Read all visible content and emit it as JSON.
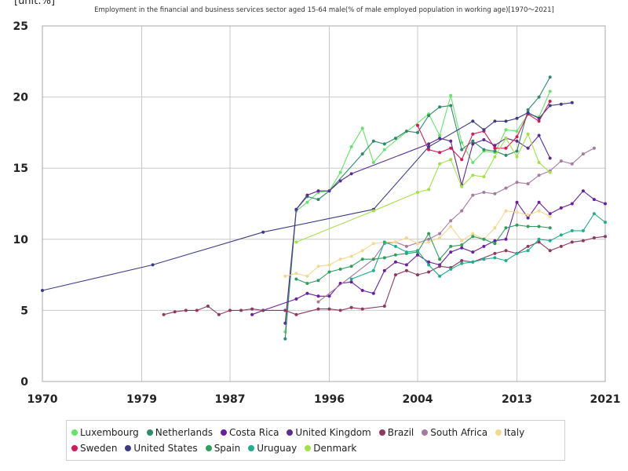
{
  "chart_data": {
    "type": "line",
    "title": "Employment in the financial and business services sector aged 15-64 male(% of male employed population in working age)[1970～2021]",
    "ylabel": "[unit:%]",
    "xlim": [
      1970,
      2021
    ],
    "ylim": [
      0,
      25
    ],
    "x_ticks": [
      1970,
      1979,
      1987,
      1996,
      2004,
      2013,
      2021
    ],
    "y_ticks": [
      0,
      5,
      10,
      15,
      20,
      25
    ],
    "grid": true,
    "legend_position": "bottom",
    "series": [
      {
        "name": "Luxembourg",
        "color": "#66e36a",
        "points": [
          [
            1992,
            3.5
          ],
          [
            1993,
            12.0
          ],
          [
            1994,
            12.6
          ],
          [
            1995,
            13.3
          ],
          [
            1996,
            13.4
          ],
          [
            1997,
            14.7
          ],
          [
            1998,
            16.5
          ],
          [
            1999,
            17.8
          ],
          [
            2000,
            15.4
          ],
          [
            2001,
            16.3
          ],
          [
            2005,
            18.8
          ],
          [
            2006,
            17.3
          ],
          [
            2007,
            20.1
          ],
          [
            2008,
            16.8
          ],
          [
            2009,
            15.4
          ],
          [
            2010,
            16.2
          ],
          [
            2011,
            16.1
          ],
          [
            2012,
            17.7
          ],
          [
            2013,
            17.6
          ],
          [
            2014,
            18.8
          ],
          [
            2015,
            18.6
          ],
          [
            2016,
            20.4
          ]
        ]
      },
      {
        "name": "Netherlands",
        "color": "#2e8b6b",
        "points": [
          [
            1992,
            3.0
          ],
          [
            1993,
            12.1
          ],
          [
            1994,
            13.0
          ],
          [
            1995,
            12.8
          ],
          [
            1996,
            13.4
          ],
          [
            1999,
            16.0
          ],
          [
            2000,
            16.9
          ],
          [
            2001,
            16.7
          ],
          [
            2002,
            17.1
          ],
          [
            2003,
            17.6
          ],
          [
            2004,
            17.5
          ],
          [
            2005,
            18.7
          ],
          [
            2006,
            19.3
          ],
          [
            2007,
            19.4
          ],
          [
            2008,
            16.3
          ],
          [
            2009,
            16.9
          ],
          [
            2010,
            16.3
          ],
          [
            2011,
            16.2
          ],
          [
            2012,
            15.9
          ],
          [
            2013,
            16.2
          ],
          [
            2014,
            19.1
          ],
          [
            2015,
            20.0
          ],
          [
            2016,
            21.4
          ]
        ]
      },
      {
        "name": "Costa Rica",
        "color": "#6a1fa0",
        "points": [
          [
            1989,
            4.7
          ],
          [
            1990,
            5.0
          ],
          [
            1993,
            5.8
          ],
          [
            1994,
            6.2
          ],
          [
            1995,
            6.0
          ],
          [
            1996,
            6.0
          ],
          [
            1997,
            6.9
          ],
          [
            1998,
            7.0
          ],
          [
            1999,
            6.4
          ],
          [
            2000,
            6.2
          ],
          [
            2001,
            7.8
          ],
          [
            2002,
            8.4
          ],
          [
            2003,
            8.2
          ],
          [
            2004,
            8.9
          ],
          [
            2005,
            8.4
          ],
          [
            2006,
            8.2
          ],
          [
            2007,
            9.1
          ],
          [
            2008,
            9.4
          ],
          [
            2009,
            9.1
          ],
          [
            2010,
            9.5
          ],
          [
            2011,
            9.9
          ],
          [
            2012,
            10.0
          ],
          [
            2013,
            12.6
          ],
          [
            2014,
            11.5
          ],
          [
            2015,
            12.6
          ],
          [
            2016,
            11.8
          ],
          [
            2017,
            12.2
          ],
          [
            2018,
            12.5
          ],
          [
            2019,
            13.4
          ],
          [
            2020,
            12.8
          ],
          [
            2021,
            12.5
          ]
        ]
      },
      {
        "name": "United Kingdom",
        "color": "#5a2d91",
        "points": [
          [
            1992,
            4.1
          ],
          [
            1993,
            12.1
          ],
          [
            1994,
            13.1
          ],
          [
            1995,
            13.4
          ],
          [
            1996,
            13.4
          ],
          [
            1997,
            14.1
          ],
          [
            1998,
            14.6
          ],
          [
            2005,
            16.7
          ],
          [
            2006,
            17.1
          ],
          [
            2007,
            16.9
          ],
          [
            2008,
            13.8
          ],
          [
            2009,
            16.7
          ],
          [
            2010,
            17.0
          ],
          [
            2011,
            16.6
          ],
          [
            2012,
            17.1
          ],
          [
            2013,
            16.9
          ],
          [
            2014,
            16.4
          ],
          [
            2015,
            17.3
          ],
          [
            2016,
            15.7
          ]
        ]
      },
      {
        "name": "Brazil",
        "color": "#8b3a62",
        "points": [
          [
            1981,
            4.7
          ],
          [
            1982,
            4.9
          ],
          [
            1983,
            5.0
          ],
          [
            1984,
            5.0
          ],
          [
            1985,
            5.3
          ],
          [
            1986,
            4.7
          ],
          [
            1987,
            5.0
          ],
          [
            1988,
            5.0
          ],
          [
            1989,
            5.1
          ],
          [
            1990,
            5.0
          ],
          [
            1992,
            5.0
          ],
          [
            1993,
            4.7
          ],
          [
            1995,
            5.1
          ],
          [
            1996,
            5.1
          ],
          [
            1997,
            5.0
          ],
          [
            1998,
            5.2
          ],
          [
            1999,
            5.1
          ],
          [
            2001,
            5.3
          ],
          [
            2002,
            7.5
          ],
          [
            2003,
            7.8
          ],
          [
            2004,
            7.5
          ],
          [
            2005,
            7.7
          ],
          [
            2006,
            8.1
          ],
          [
            2007,
            8.0
          ],
          [
            2008,
            8.5
          ],
          [
            2009,
            8.4
          ],
          [
            2011,
            9.0
          ],
          [
            2012,
            9.2
          ],
          [
            2013,
            9.0
          ],
          [
            2014,
            9.5
          ],
          [
            2015,
            9.8
          ],
          [
            2016,
            9.2
          ],
          [
            2017,
            9.5
          ],
          [
            2018,
            9.8
          ],
          [
            2019,
            9.9
          ],
          [
            2020,
            10.1
          ],
          [
            2021,
            10.2
          ]
        ]
      },
      {
        "name": "South Africa",
        "color": "#a57a9e",
        "points": [
          [
            1995,
            5.6
          ],
          [
            2000,
            8.6
          ],
          [
            2001,
            9.7
          ],
          [
            2002,
            9.8
          ],
          [
            2003,
            9.5
          ],
          [
            2005,
            10.0
          ],
          [
            2006,
            10.4
          ],
          [
            2007,
            11.3
          ],
          [
            2008,
            12.0
          ],
          [
            2009,
            13.1
          ],
          [
            2010,
            13.3
          ],
          [
            2011,
            13.2
          ],
          [
            2012,
            13.6
          ],
          [
            2013,
            14.0
          ],
          [
            2014,
            13.9
          ],
          [
            2015,
            14.5
          ],
          [
            2016,
            14.8
          ],
          [
            2017,
            15.5
          ],
          [
            2018,
            15.3
          ],
          [
            2019,
            16.0
          ],
          [
            2020,
            16.4
          ]
        ]
      },
      {
        "name": "Italy",
        "color": "#f1d98f",
        "points": [
          [
            1992,
            7.4
          ],
          [
            1993,
            7.6
          ],
          [
            1994,
            7.4
          ],
          [
            1995,
            8.1
          ],
          [
            1996,
            8.2
          ],
          [
            1997,
            8.6
          ],
          [
            1998,
            8.8
          ],
          [
            1999,
            9.2
          ],
          [
            2000,
            9.7
          ],
          [
            2001,
            9.8
          ],
          [
            2002,
            9.8
          ],
          [
            2003,
            10.1
          ],
          [
            2004,
            9.7
          ],
          [
            2005,
            9.8
          ],
          [
            2006,
            10.1
          ],
          [
            2007,
            10.9
          ],
          [
            2008,
            9.9
          ],
          [
            2009,
            10.4
          ],
          [
            2010,
            10.0
          ],
          [
            2011,
            10.8
          ],
          [
            2012,
            12.0
          ],
          [
            2013,
            11.9
          ],
          [
            2014,
            11.7
          ],
          [
            2015,
            12.0
          ],
          [
            2016,
            11.6
          ]
        ]
      },
      {
        "name": "Sweden",
        "color": "#d6185a",
        "points": [
          [
            2004,
            18.0
          ],
          [
            2005,
            16.3
          ],
          [
            2006,
            16.1
          ],
          [
            2007,
            16.4
          ],
          [
            2008,
            15.6
          ],
          [
            2009,
            17.4
          ],
          [
            2010,
            17.6
          ],
          [
            2011,
            16.4
          ],
          [
            2012,
            16.4
          ],
          [
            2013,
            17.2
          ],
          [
            2014,
            18.8
          ],
          [
            2015,
            18.3
          ],
          [
            2016,
            19.7
          ]
        ]
      },
      {
        "name": "United States",
        "color": "#3c3c85",
        "points": [
          [
            1970,
            6.4
          ],
          [
            1980,
            8.2
          ],
          [
            1990,
            10.5
          ],
          [
            2000,
            12.1
          ],
          [
            2005,
            16.5
          ],
          [
            2009,
            18.3
          ],
          [
            2010,
            17.7
          ],
          [
            2011,
            18.3
          ],
          [
            2012,
            18.3
          ],
          [
            2013,
            18.5
          ],
          [
            2014,
            18.9
          ],
          [
            2015,
            18.5
          ],
          [
            2016,
            19.4
          ],
          [
            2017,
            19.5
          ],
          [
            2018,
            19.6
          ]
        ]
      },
      {
        "name": "Spain",
        "color": "#2f9e5f",
        "points": [
          [
            1993,
            7.2
          ],
          [
            1994,
            6.9
          ],
          [
            1995,
            7.1
          ],
          [
            1996,
            7.7
          ],
          [
            1997,
            7.9
          ],
          [
            1998,
            8.1
          ],
          [
            1999,
            8.6
          ],
          [
            2000,
            8.6
          ],
          [
            2001,
            8.7
          ],
          [
            2002,
            8.9
          ],
          [
            2003,
            9.0
          ],
          [
            2004,
            9.1
          ],
          [
            2005,
            10.4
          ],
          [
            2006,
            8.6
          ],
          [
            2007,
            9.5
          ],
          [
            2008,
            9.6
          ],
          [
            2009,
            10.2
          ],
          [
            2010,
            10.0
          ],
          [
            2011,
            9.7
          ],
          [
            2012,
            10.8
          ],
          [
            2013,
            11.0
          ],
          [
            2014,
            10.9
          ],
          [
            2015,
            10.9
          ],
          [
            2016,
            10.8
          ]
        ]
      },
      {
        "name": "Uruguay",
        "color": "#1fae8f",
        "points": [
          [
            1998,
            7.2
          ],
          [
            2000,
            7.8
          ],
          [
            2001,
            9.8
          ],
          [
            2002,
            9.5
          ],
          [
            2003,
            9.1
          ],
          [
            2004,
            9.2
          ],
          [
            2005,
            8.2
          ],
          [
            2006,
            7.4
          ],
          [
            2007,
            7.9
          ],
          [
            2008,
            8.3
          ],
          [
            2009,
            8.4
          ],
          [
            2010,
            8.6
          ],
          [
            2011,
            8.7
          ],
          [
            2012,
            8.5
          ],
          [
            2013,
            9.0
          ],
          [
            2014,
            9.2
          ],
          [
            2015,
            10.0
          ],
          [
            2016,
            9.9
          ],
          [
            2017,
            10.3
          ],
          [
            2018,
            10.6
          ],
          [
            2019,
            10.6
          ],
          [
            2020,
            11.8
          ],
          [
            2021,
            11.2
          ]
        ]
      },
      {
        "name": "Denmark",
        "color": "#a4e04a",
        "points": [
          [
            1993,
            9.8
          ],
          [
            2000,
            12.0
          ],
          [
            2004,
            13.3
          ],
          [
            2005,
            13.5
          ],
          [
            2006,
            15.3
          ],
          [
            2007,
            15.6
          ],
          [
            2008,
            13.7
          ],
          [
            2009,
            14.5
          ],
          [
            2010,
            14.4
          ],
          [
            2011,
            15.8
          ],
          [
            2012,
            17.1
          ],
          [
            2013,
            15.8
          ],
          [
            2014,
            17.4
          ],
          [
            2015,
            15.4
          ],
          [
            2016,
            14.7
          ]
        ]
      }
    ]
  }
}
